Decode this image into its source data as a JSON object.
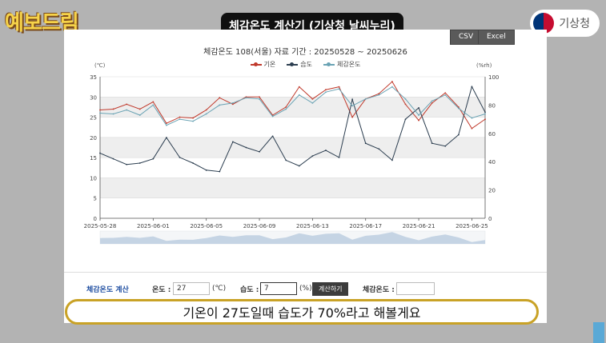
{
  "brand_left": "예보드림",
  "brand_right": "기상청",
  "video_title": "체감온도 계산기 (기상청 날씨누리)",
  "export": {
    "csv": "CSV",
    "excel": "Excel"
  },
  "chart_data": {
    "type": "line",
    "title": "체감온도 108(서울) 자료 기간 : 20250528 ~ 20250626",
    "y_unit": "(℃)",
    "y2_unit": "(%rh)",
    "y_ticks": [
      "0",
      "5",
      "10",
      "15",
      "20",
      "25",
      "30",
      "35"
    ],
    "y2_ticks": [
      "0",
      "20",
      "40",
      "60",
      "80",
      "100"
    ],
    "x_ticks": [
      "2025-05-28",
      "2025-06-01",
      "2025-06-05",
      "2025-06-09",
      "2025-06-13",
      "2025-06-17",
      "2025-06-21",
      "2025-06-25"
    ],
    "ylim": [
      0,
      35
    ],
    "y2lim": [
      0,
      100
    ],
    "legend_position": "top-center",
    "grid": true,
    "series": [
      {
        "name": "기온",
        "axis": "left",
        "color": "#c0392b",
        "values": [
          26.8,
          27.0,
          28.2,
          27.0,
          28.8,
          23.5,
          25.0,
          24.8,
          26.8,
          29.8,
          28.2,
          30.0,
          30.0,
          25.5,
          27.5,
          32.5,
          29.5,
          31.8,
          32.5,
          25.0,
          29.5,
          30.8,
          33.8,
          28.2,
          24.2,
          28.5,
          31.0,
          27.5,
          22.2,
          24.5
        ]
      },
      {
        "name": "습도",
        "axis": "right",
        "color": "#2c3e50",
        "values": [
          46,
          42,
          38,
          39,
          42,
          57,
          43,
          39,
          34,
          33,
          54,
          50,
          47,
          58,
          41,
          37,
          44,
          48,
          43,
          84,
          53,
          49,
          41,
          70,
          78,
          53,
          51,
          59,
          93,
          75
        ]
      },
      {
        "name": "체감온도",
        "axis": "left",
        "color": "#6aa3b4",
        "values": [
          26.0,
          25.8,
          26.8,
          25.5,
          28.0,
          23.0,
          24.5,
          24.0,
          25.8,
          28.0,
          28.5,
          29.8,
          29.5,
          25.2,
          27.0,
          30.5,
          28.5,
          31.2,
          32.0,
          27.8,
          29.5,
          30.5,
          32.5,
          29.5,
          25.5,
          29.0,
          30.5,
          27.2,
          24.8,
          25.8
        ]
      }
    ]
  },
  "calc": {
    "title": "체감온도 계산",
    "temp_label": "온도 :",
    "temp_value": "27",
    "temp_unit": "(℃)",
    "humid_label": "습도 :",
    "humid_value": "7",
    "humid_unit": "(%)",
    "button": "계산하기",
    "result_label": "체감온도 :",
    "result_value": ""
  },
  "subtitle": "기온이 27도일때 습도가 70%라고 해볼게요"
}
